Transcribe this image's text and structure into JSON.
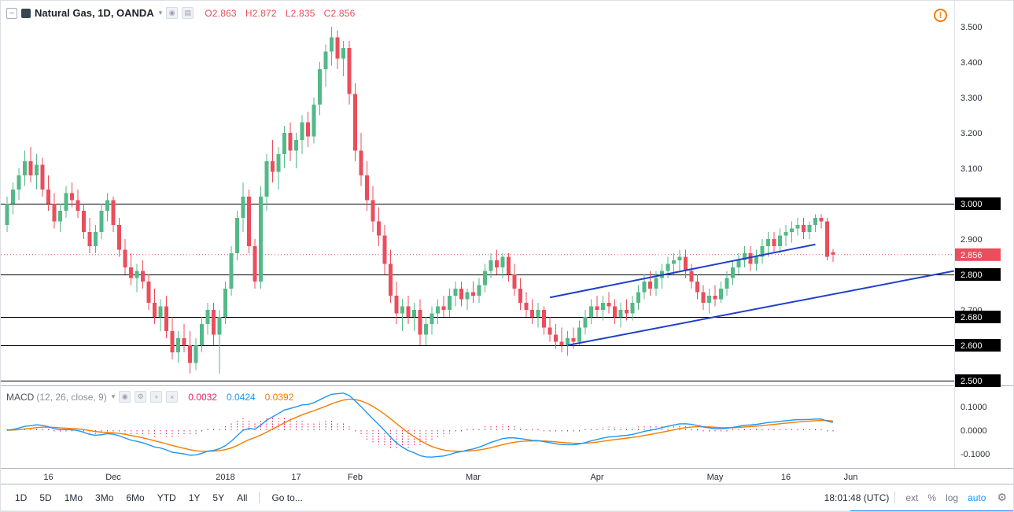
{
  "header": {
    "symbol_title": "Natural Gas, 1D, OANDA",
    "ohlc": {
      "open_label": "O",
      "open": "2.863",
      "high_label": "H",
      "high": "2.872",
      "low_label": "L",
      "low": "2.835",
      "close_label": "C",
      "close": "2.856"
    }
  },
  "indicator": {
    "name": "MACD",
    "params": "(12, 26, close, 9)",
    "histogram_value": "0.0032",
    "macd_value": "0.0424",
    "signal_value": "0.0392"
  },
  "icons": {
    "collapse": "–",
    "dropdown": "▾",
    "eye": "◉",
    "menu": "▤",
    "settings": "⚙",
    "plus": "+",
    "close": "×",
    "alert": "!",
    "gear": "⚙"
  },
  "toolbar": {
    "ranges": [
      "1D",
      "5D",
      "1Mo",
      "3Mo",
      "6Mo",
      "YTD",
      "1Y",
      "5Y",
      "All"
    ],
    "goto_label": "Go to...",
    "clock": "18:01:48 (UTC)",
    "ext_label": "ext",
    "percent_label": "%",
    "log_label": "log",
    "auto_label": "auto"
  },
  "colors": {
    "up": "#53b987",
    "down": "#eb4d5c",
    "histogram": "#e91e63",
    "macd_line": "#2196f3",
    "signal_line": "#f57c00",
    "trend": "#2040c8",
    "level": "#000000",
    "accent": "#2196f3",
    "bottom_bar": "#2979ff"
  },
  "chart_data": {
    "type": "candlestick",
    "symbol": "Natural Gas",
    "interval": "1D",
    "exchange": "OANDA",
    "price_axis": {
      "min": 2.5,
      "max": 3.5,
      "tick_step": 0.1
    },
    "price_levels": [
      3.0,
      2.8,
      2.68,
      2.6,
      2.5
    ],
    "last_price": 2.856,
    "macd": {
      "fast": 12,
      "slow": 26,
      "source": "close",
      "signal": 9,
      "axis_labels": [
        "0.1000",
        "0.0000",
        "-0.1000"
      ],
      "axis_values": [
        0.1,
        0,
        -0.1
      ]
    },
    "time_labels": [
      {
        "label": "16",
        "i": 7
      },
      {
        "label": "Dec",
        "i": 18
      },
      {
        "label": "2018",
        "i": 37
      },
      {
        "label": "17",
        "i": 49
      },
      {
        "label": "Feb",
        "i": 59
      },
      {
        "label": "Mar",
        "i": 79
      },
      {
        "label": "Apr",
        "i": 100
      },
      {
        "label": "May",
        "i": 120
      },
      {
        "label": "16",
        "i": 132
      },
      {
        "label": "Jun",
        "i": 143
      }
    ],
    "trendlines": [
      {
        "i1": 92,
        "p1": 2.735,
        "i2": 137,
        "p2": 2.885
      },
      {
        "i1": 95,
        "p1": 2.6,
        "i2": 160.5,
        "p2": 2.81
      }
    ],
    "candles": [
      [
        2.94,
        3.02,
        2.92,
        3.0
      ],
      [
        3.0,
        3.06,
        2.97,
        3.04
      ],
      [
        3.04,
        3.1,
        3.01,
        3.08
      ],
      [
        3.08,
        3.15,
        3.05,
        3.12
      ],
      [
        3.12,
        3.16,
        3.06,
        3.08
      ],
      [
        3.08,
        3.14,
        3.04,
        3.11
      ],
      [
        3.11,
        3.13,
        3.02,
        3.04
      ],
      [
        3.04,
        3.08,
        2.98,
        3.0
      ],
      [
        3.0,
        3.03,
        2.93,
        2.95
      ],
      [
        2.95,
        3.0,
        2.92,
        2.98
      ],
      [
        2.98,
        3.05,
        2.96,
        3.03
      ],
      [
        3.03,
        3.06,
        2.99,
        3.01
      ],
      [
        3.01,
        3.04,
        2.96,
        2.98
      ],
      [
        2.98,
        3.0,
        2.9,
        2.92
      ],
      [
        2.92,
        2.96,
        2.86,
        2.88
      ],
      [
        2.88,
        2.94,
        2.86,
        2.92
      ],
      [
        2.92,
        3.0,
        2.9,
        2.98
      ],
      [
        2.98,
        3.03,
        2.95,
        3.01
      ],
      [
        3.01,
        3.02,
        2.92,
        2.94
      ],
      [
        2.94,
        2.96,
        2.85,
        2.87
      ],
      [
        2.87,
        2.9,
        2.8,
        2.82
      ],
      [
        2.82,
        2.86,
        2.77,
        2.79
      ],
      [
        2.79,
        2.83,
        2.75,
        2.81
      ],
      [
        2.81,
        2.84,
        2.76,
        2.78
      ],
      [
        2.78,
        2.8,
        2.7,
        2.72
      ],
      [
        2.72,
        2.76,
        2.66,
        2.68
      ],
      [
        2.68,
        2.73,
        2.64,
        2.71
      ],
      [
        2.71,
        2.74,
        2.62,
        2.64
      ],
      [
        2.64,
        2.68,
        2.56,
        2.58
      ],
      [
        2.58,
        2.64,
        2.55,
        2.62
      ],
      [
        2.62,
        2.66,
        2.58,
        2.6
      ],
      [
        2.6,
        2.64,
        2.52,
        2.55
      ],
      [
        2.55,
        2.62,
        2.53,
        2.6
      ],
      [
        2.6,
        2.68,
        2.58,
        2.66
      ],
      [
        2.66,
        2.72,
        2.63,
        2.7
      ],
      [
        2.7,
        2.72,
        2.6,
        2.63
      ],
      [
        2.63,
        2.7,
        2.52,
        2.68
      ],
      [
        2.68,
        2.78,
        2.66,
        2.76
      ],
      [
        2.76,
        2.88,
        2.74,
        2.86
      ],
      [
        2.86,
        2.98,
        2.84,
        2.96
      ],
      [
        2.96,
        3.06,
        2.92,
        3.02
      ],
      [
        3.02,
        3.04,
        2.86,
        2.88
      ],
      [
        2.88,
        2.9,
        2.76,
        2.78
      ],
      [
        2.78,
        3.05,
        2.76,
        3.02
      ],
      [
        3.02,
        3.14,
        2.98,
        3.12
      ],
      [
        3.12,
        3.18,
        3.06,
        3.09
      ],
      [
        3.09,
        3.16,
        3.04,
        3.14
      ],
      [
        3.14,
        3.22,
        3.1,
        3.2
      ],
      [
        3.2,
        3.23,
        3.12,
        3.15
      ],
      [
        3.15,
        3.2,
        3.1,
        3.18
      ],
      [
        3.18,
        3.25,
        3.14,
        3.23
      ],
      [
        3.23,
        3.26,
        3.16,
        3.19
      ],
      [
        3.19,
        3.3,
        3.17,
        3.28
      ],
      [
        3.28,
        3.4,
        3.25,
        3.38
      ],
      [
        3.38,
        3.45,
        3.33,
        3.43
      ],
      [
        3.43,
        3.5,
        3.39,
        3.47
      ],
      [
        3.47,
        3.49,
        3.38,
        3.41
      ],
      [
        3.41,
        3.46,
        3.36,
        3.44
      ],
      [
        3.44,
        3.46,
        3.28,
        3.31
      ],
      [
        3.31,
        3.34,
        3.12,
        3.15
      ],
      [
        3.15,
        3.2,
        3.05,
        3.08
      ],
      [
        3.08,
        3.12,
        2.98,
        3.01
      ],
      [
        3.01,
        3.05,
        2.92,
        2.95
      ],
      [
        2.95,
        2.99,
        2.88,
        2.91
      ],
      [
        2.91,
        2.94,
        2.8,
        2.83
      ],
      [
        2.83,
        2.87,
        2.72,
        2.74
      ],
      [
        2.74,
        2.78,
        2.66,
        2.69
      ],
      [
        2.69,
        2.73,
        2.64,
        2.71
      ],
      [
        2.71,
        2.74,
        2.66,
        2.68
      ],
      [
        2.68,
        2.72,
        2.64,
        2.7
      ],
      [
        2.7,
        2.73,
        2.6,
        2.63
      ],
      [
        2.63,
        2.68,
        2.6,
        2.66
      ],
      [
        2.66,
        2.71,
        2.63,
        2.69
      ],
      [
        2.69,
        2.73,
        2.66,
        2.71
      ],
      [
        2.71,
        2.74,
        2.68,
        2.7
      ],
      [
        2.7,
        2.76,
        2.68,
        2.74
      ],
      [
        2.74,
        2.78,
        2.71,
        2.76
      ],
      [
        2.76,
        2.78,
        2.71,
        2.73
      ],
      [
        2.73,
        2.76,
        2.7,
        2.75
      ],
      [
        2.75,
        2.78,
        2.72,
        2.74
      ],
      [
        2.74,
        2.79,
        2.72,
        2.77
      ],
      [
        2.77,
        2.83,
        2.75,
        2.81
      ],
      [
        2.81,
        2.86,
        2.79,
        2.84
      ],
      [
        2.84,
        2.87,
        2.8,
        2.82
      ],
      [
        2.82,
        2.86,
        2.79,
        2.85
      ],
      [
        2.85,
        2.86,
        2.78,
        2.8
      ],
      [
        2.8,
        2.83,
        2.74,
        2.76
      ],
      [
        2.76,
        2.79,
        2.7,
        2.72
      ],
      [
        2.72,
        2.75,
        2.68,
        2.7
      ],
      [
        2.7,
        2.73,
        2.66,
        2.68
      ],
      [
        2.68,
        2.72,
        2.65,
        2.7
      ],
      [
        2.7,
        2.71,
        2.63,
        2.65
      ],
      [
        2.65,
        2.68,
        2.61,
        2.63
      ],
      [
        2.63,
        2.66,
        2.59,
        2.61
      ],
      [
        2.61,
        2.65,
        2.58,
        2.6
      ],
      [
        2.6,
        2.64,
        2.57,
        2.62
      ],
      [
        2.62,
        2.65,
        2.59,
        2.61
      ],
      [
        2.61,
        2.67,
        2.6,
        2.65
      ],
      [
        2.65,
        2.7,
        2.63,
        2.68
      ],
      [
        2.68,
        2.73,
        2.66,
        2.71
      ],
      [
        2.71,
        2.74,
        2.68,
        2.7
      ],
      [
        2.7,
        2.74,
        2.67,
        2.72
      ],
      [
        2.72,
        2.75,
        2.69,
        2.71
      ],
      [
        2.71,
        2.73,
        2.66,
        2.68
      ],
      [
        2.68,
        2.72,
        2.65,
        2.7
      ],
      [
        2.7,
        2.73,
        2.67,
        2.69
      ],
      [
        2.69,
        2.74,
        2.67,
        2.72
      ],
      [
        2.72,
        2.77,
        2.7,
        2.75
      ],
      [
        2.75,
        2.8,
        2.73,
        2.78
      ],
      [
        2.78,
        2.81,
        2.74,
        2.76
      ],
      [
        2.76,
        2.81,
        2.74,
        2.79
      ],
      [
        2.79,
        2.83,
        2.76,
        2.81
      ],
      [
        2.81,
        2.85,
        2.79,
        2.83
      ],
      [
        2.83,
        2.86,
        2.8,
        2.84
      ],
      [
        2.84,
        2.87,
        2.81,
        2.85
      ],
      [
        2.85,
        2.87,
        2.79,
        2.81
      ],
      [
        2.81,
        2.83,
        2.76,
        2.78
      ],
      [
        2.78,
        2.8,
        2.73,
        2.75
      ],
      [
        2.75,
        2.77,
        2.7,
        2.72
      ],
      [
        2.72,
        2.76,
        2.69,
        2.74
      ],
      [
        2.74,
        2.77,
        2.71,
        2.73
      ],
      [
        2.73,
        2.78,
        2.72,
        2.76
      ],
      [
        2.76,
        2.81,
        2.74,
        2.79
      ],
      [
        2.79,
        2.84,
        2.77,
        2.82
      ],
      [
        2.82,
        2.86,
        2.8,
        2.84
      ],
      [
        2.84,
        2.88,
        2.82,
        2.86
      ],
      [
        2.86,
        2.88,
        2.81,
        2.83
      ],
      [
        2.83,
        2.87,
        2.81,
        2.85
      ],
      [
        2.85,
        2.9,
        2.83,
        2.88
      ],
      [
        2.88,
        2.92,
        2.85,
        2.9
      ],
      [
        2.9,
        2.92,
        2.86,
        2.88
      ],
      [
        2.88,
        2.93,
        2.86,
        2.91
      ],
      [
        2.91,
        2.94,
        2.88,
        2.92
      ],
      [
        2.92,
        2.95,
        2.89,
        2.93
      ],
      [
        2.93,
        2.96,
        2.91,
        2.94
      ],
      [
        2.94,
        2.96,
        2.9,
        2.92
      ],
      [
        2.92,
        2.95,
        2.9,
        2.94
      ],
      [
        2.94,
        2.97,
        2.92,
        2.96
      ],
      [
        2.96,
        2.97,
        2.93,
        2.95
      ],
      [
        2.95,
        2.96,
        2.84,
        2.85
      ],
      [
        2.863,
        2.872,
        2.835,
        2.856
      ]
    ]
  }
}
